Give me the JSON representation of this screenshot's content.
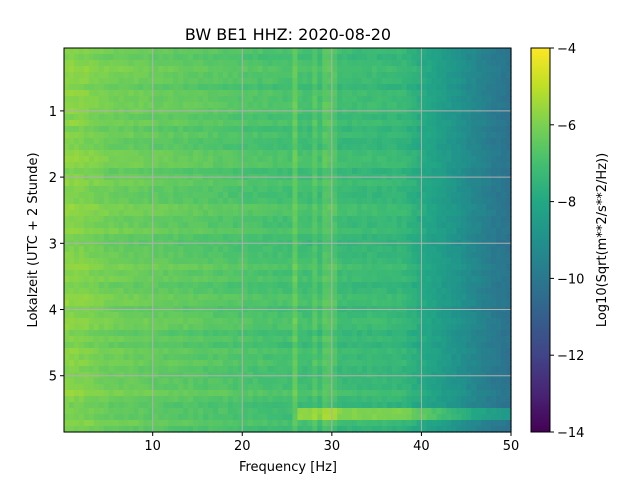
{
  "chart_data": {
    "type": "heatmap",
    "title": "BW BE1  HHZ: 2020-08-20",
    "xlabel": "Frequency [Hz]",
    "ylabel": "Lokalzeit (UTC + 2 Stunde)",
    "colorbar_label": "Log10(Sqrt(m**2/s**2/Hz))",
    "xlim": [
      0.1,
      50
    ],
    "ylim": [
      5.85,
      0.05
    ],
    "x_ticks": [
      10,
      20,
      30,
      40,
      50
    ],
    "x_tick_labels": [
      "10",
      "20",
      "30",
      "40",
      "50"
    ],
    "y_ticks": [
      1,
      2,
      3,
      4,
      5
    ],
    "y_tick_labels": [
      "1",
      "2",
      "3",
      "4",
      "5"
    ],
    "color_range": [
      -14,
      -4
    ],
    "colorbar_ticks": [
      -4,
      -6,
      -8,
      -10,
      -12,
      -14
    ],
    "colorbar_tick_labels": [
      "−4",
      "−6",
      "−8",
      "−10",
      "−12",
      "−14"
    ],
    "colormap": "viridis",
    "grid": true,
    "frequency_profile": {
      "freq_hz": [
        0.1,
        2,
        5,
        10,
        15,
        20,
        25,
        30,
        35,
        38,
        40,
        42,
        44,
        46,
        48,
        50
      ],
      "level": [
        -5.8,
        -5.9,
        -6.2,
        -6.4,
        -6.6,
        -6.8,
        -7.0,
        -7.2,
        -7.3,
        -7.4,
        -7.9,
        -8.4,
        -8.9,
        -9.4,
        -9.9,
        -10.2
      ]
    },
    "features": [
      {
        "label": "line-26Hz",
        "freq_hz": 26,
        "delta": 0.6
      },
      {
        "label": "line-28Hz",
        "freq_hz": 28,
        "delta": 0.4
      },
      {
        "label": "line-29.5Hz",
        "freq_hz": 29.5,
        "delta": 0.5
      },
      {
        "label": "line-30.5Hz",
        "freq_hz": 30.5,
        "delta": 0.4
      },
      {
        "label": "band-5.6h",
        "time_h": [
          5.5,
          5.65
        ],
        "freq_hz": [
          26,
          50
        ],
        "delta": 1.5
      }
    ]
  },
  "colors": {
    "grid": "#b0b0b0",
    "axes": "#000000",
    "background": "#ffffff"
  }
}
